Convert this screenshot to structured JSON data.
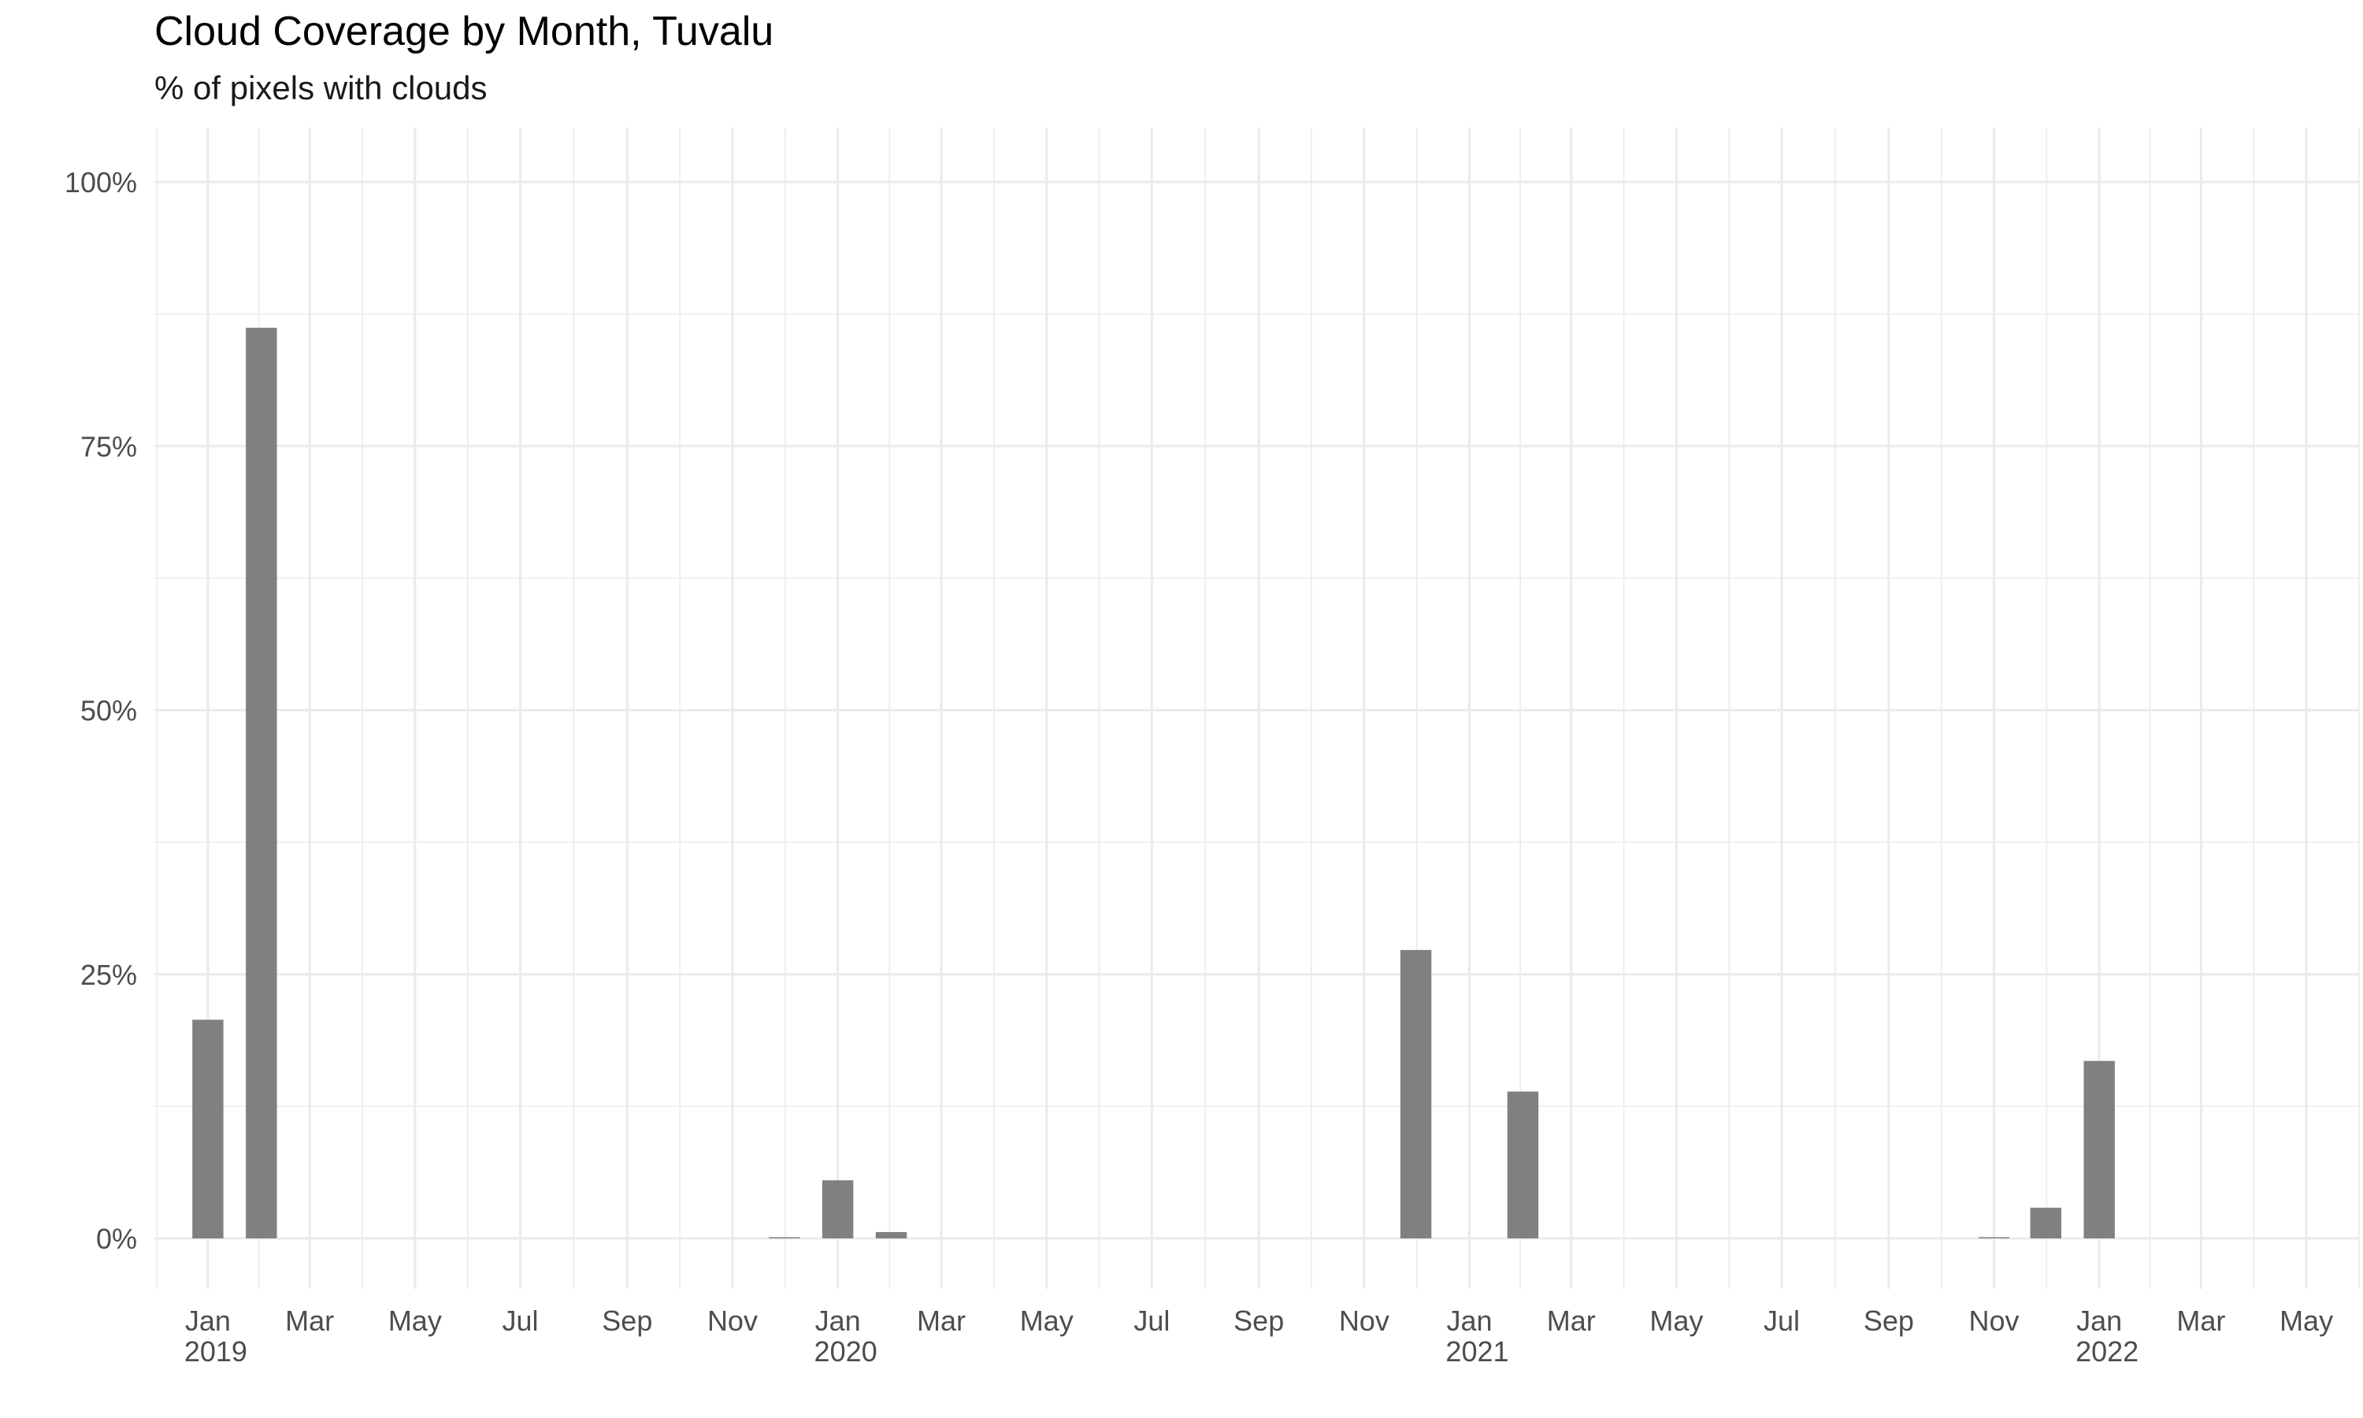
{
  "chart_data": {
    "type": "bar",
    "title": "Cloud Coverage by Month, Tuvalu",
    "subtitle": "% of pixels with clouds",
    "xlabel": "",
    "ylabel": "",
    "ylim": [
      0,
      1
    ],
    "y_ticks": [
      {
        "value": 0,
        "label": "0%"
      },
      {
        "value": 0.25,
        "label": "25%"
      },
      {
        "value": 0.5,
        "label": "50%"
      },
      {
        "value": 0.75,
        "label": "75%"
      },
      {
        "value": 1,
        "label": "100%"
      }
    ],
    "x_range": [
      "2018-12-01",
      "2022-06-01"
    ],
    "x_ticks": [
      {
        "date": "2019-01-01",
        "label": "Jan",
        "year": "2019"
      },
      {
        "date": "2019-03-01",
        "label": "Mar"
      },
      {
        "date": "2019-05-01",
        "label": "May"
      },
      {
        "date": "2019-07-01",
        "label": "Jul"
      },
      {
        "date": "2019-09-01",
        "label": "Sep"
      },
      {
        "date": "2019-11-01",
        "label": "Nov"
      },
      {
        "date": "2020-01-01",
        "label": "Jan",
        "year": "2020"
      },
      {
        "date": "2020-03-01",
        "label": "Mar"
      },
      {
        "date": "2020-05-01",
        "label": "May"
      },
      {
        "date": "2020-07-01",
        "label": "Jul"
      },
      {
        "date": "2020-09-01",
        "label": "Sep"
      },
      {
        "date": "2020-11-01",
        "label": "Nov"
      },
      {
        "date": "2021-01-01",
        "label": "Jan",
        "year": "2021"
      },
      {
        "date": "2021-03-01",
        "label": "Mar"
      },
      {
        "date": "2021-05-01",
        "label": "May"
      },
      {
        "date": "2021-07-01",
        "label": "Jul"
      },
      {
        "date": "2021-09-01",
        "label": "Sep"
      },
      {
        "date": "2021-11-01",
        "label": "Nov"
      },
      {
        "date": "2022-01-01",
        "label": "Jan",
        "year": "2022"
      },
      {
        "date": "2022-03-01",
        "label": "Mar"
      },
      {
        "date": "2022-05-01",
        "label": "May"
      }
    ],
    "series": [
      {
        "values": [
          {
            "date": "2019-01-01",
            "value": 0.207
          },
          {
            "date": "2019-02-01",
            "value": 0.862
          },
          {
            "date": "2019-12-01",
            "value": 0.001
          },
          {
            "date": "2020-01-01",
            "value": 0.055
          },
          {
            "date": "2020-02-01",
            "value": 0.006
          },
          {
            "date": "2020-12-01",
            "value": 0.273
          },
          {
            "date": "2021-02-01",
            "value": 0.139
          },
          {
            "date": "2021-11-01",
            "value": 0.001
          },
          {
            "date": "2021-12-01",
            "value": 0.029
          },
          {
            "date": "2022-01-01",
            "value": 0.168
          }
        ]
      }
    ],
    "grid": true,
    "bar_color": "#808080",
    "grid_color": "#ebebeb",
    "legend": "none"
  }
}
